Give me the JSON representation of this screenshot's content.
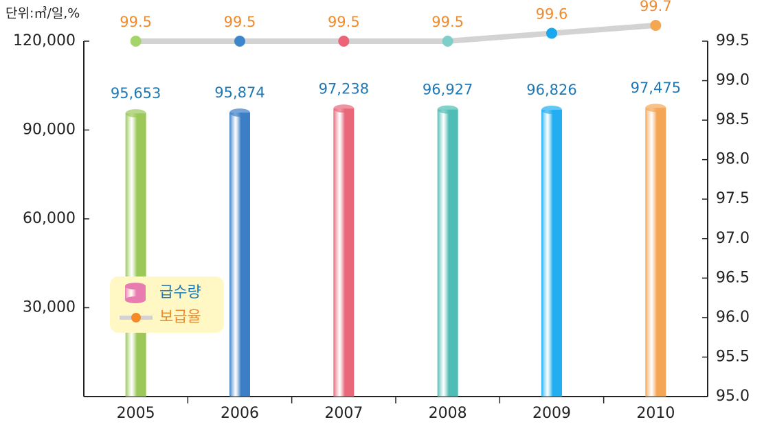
{
  "chart_data": {
    "type": "bar",
    "unit": "단위:㎥/일,%",
    "categories": [
      "2005",
      "2006",
      "2007",
      "2008",
      "2009",
      "2010"
    ],
    "series": [
      {
        "name": "급수량",
        "type": "bar",
        "color": "#e87bb0",
        "colors": [
          "#9cc85a",
          "#3d7fc6",
          "#e8687a",
          "#4fbdb5",
          "#22aef0",
          "#f4a656"
        ],
        "values": [
          95653,
          95874,
          97238,
          96927,
          96826,
          97475
        ],
        "value_labels": [
          "95,653",
          "95,874",
          "97,238",
          "96,927",
          "96,826",
          "97,475"
        ]
      },
      {
        "name": "보급율",
        "type": "line",
        "axis": "y2",
        "color": "#d3d3d3",
        "point_colors": [
          "#a5d46a",
          "#3d86cc",
          "#ee6477",
          "#7fcfc9",
          "#1aa7ee",
          "#f5a650"
        ],
        "values": [
          99.5,
          99.5,
          99.5,
          99.5,
          99.6,
          99.7
        ]
      }
    ],
    "ylim": [
      0,
      120000
    ],
    "yticks": [
      {
        "value": 30000,
        "label": "30,000"
      },
      {
        "value": 60000,
        "label": "60,000"
      },
      {
        "value": 90000,
        "label": "90,000"
      },
      {
        "value": 120000,
        "label": "120,000"
      }
    ],
    "y2lim": [
      95,
      99.5
    ],
    "y2ticks": [
      {
        "value": 95,
        "label": "95.0"
      },
      95.5,
      {
        "value": 96,
        "label": "96.0"
      },
      96.5,
      {
        "value": 97,
        "label": "97.0"
      },
      97.5,
      {
        "value": 98,
        "label": "98.0"
      },
      98.5,
      {
        "value": 99,
        "label": "99.0"
      },
      99.5
    ],
    "legend": "lower left"
  }
}
